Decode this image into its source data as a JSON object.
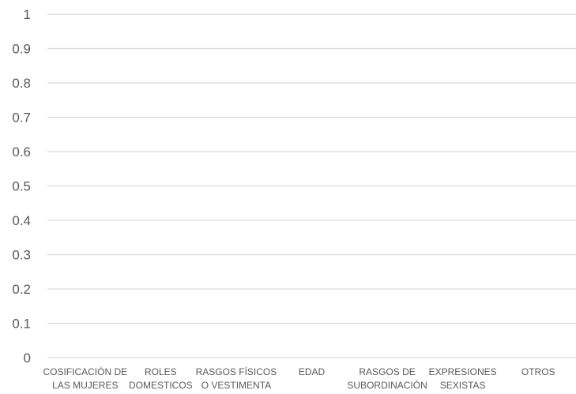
{
  "chart_data": {
    "type": "bar",
    "title": "",
    "xlabel": "",
    "ylabel": "",
    "categories": [
      [
        "COSIFICACIÓN DE",
        "LAS MUJERES"
      ],
      [
        "ROLES",
        "DOMESTICOS"
      ],
      [
        "RASGOS FÍSICOS",
        "O VESTIMENTA"
      ],
      [
        "EDAD"
      ],
      [
        "RASGOS DE",
        "SUBORDINACIÓN"
      ],
      [
        "EXPRESIONES",
        "SEXISTAS"
      ],
      [
        "OTROS"
      ]
    ],
    "values": [
      0,
      0,
      0,
      0,
      0,
      0,
      0
    ],
    "ylim": [
      0,
      1
    ],
    "yticks": [
      "0",
      "0.1",
      "0.2",
      "0.3",
      "0.4",
      "0.5",
      "0.6",
      "0.7",
      "0.8",
      "0.9",
      "1"
    ],
    "grid": true,
    "legend": "none",
    "colors": {
      "grid": "#d9d9d9",
      "text": "#595959",
      "bar": "#4472c4"
    }
  }
}
